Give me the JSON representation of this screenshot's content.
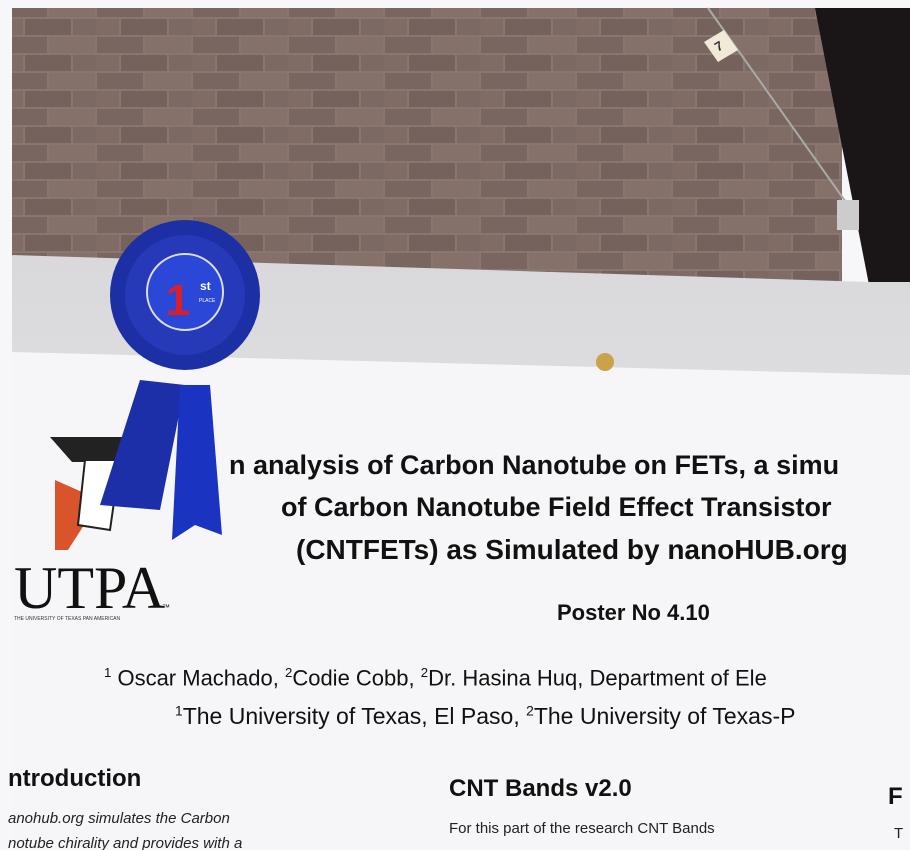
{
  "tag": "7",
  "ribbon": {
    "number": "1",
    "suffix": "st",
    "label": "PLACE"
  },
  "logo": {
    "name": "UTPA",
    "tm": "™",
    "subtitle": "THE UNIVERSITY OF TEXAS PAN AMERICAN"
  },
  "title": [
    "n analysis of Carbon Nanotube on FETs, a simu",
    "of Carbon Nanotube Field Effect Transistor",
    "(CNTFETs) as Simulated by nanoHUB.org"
  ],
  "poster_no": "Poster No 4.10",
  "authors": [
    {
      "sup": "1",
      "text": " Oscar Machado, "
    },
    {
      "sup": "2",
      "text": "Codie Cobb, "
    },
    {
      "sup": "2",
      "text": "Dr. Hasina Huq, Department of Ele"
    }
  ],
  "affiliations": [
    {
      "sup": "1",
      "text": "The University of Texas, El Paso, "
    },
    {
      "sup": "2",
      "text": "The University of Texas-P"
    }
  ],
  "sections": [
    {
      "heading": "ntroduction",
      "lines": [
        "anohub.org simulates the Carbon",
        "notube chirality and provides with a"
      ]
    },
    {
      "heading": "CNT Bands v2.0",
      "lines": [
        "For this part of the research CNT Bands"
      ]
    },
    {
      "heading": "F",
      "lines": [
        "T"
      ]
    }
  ]
}
